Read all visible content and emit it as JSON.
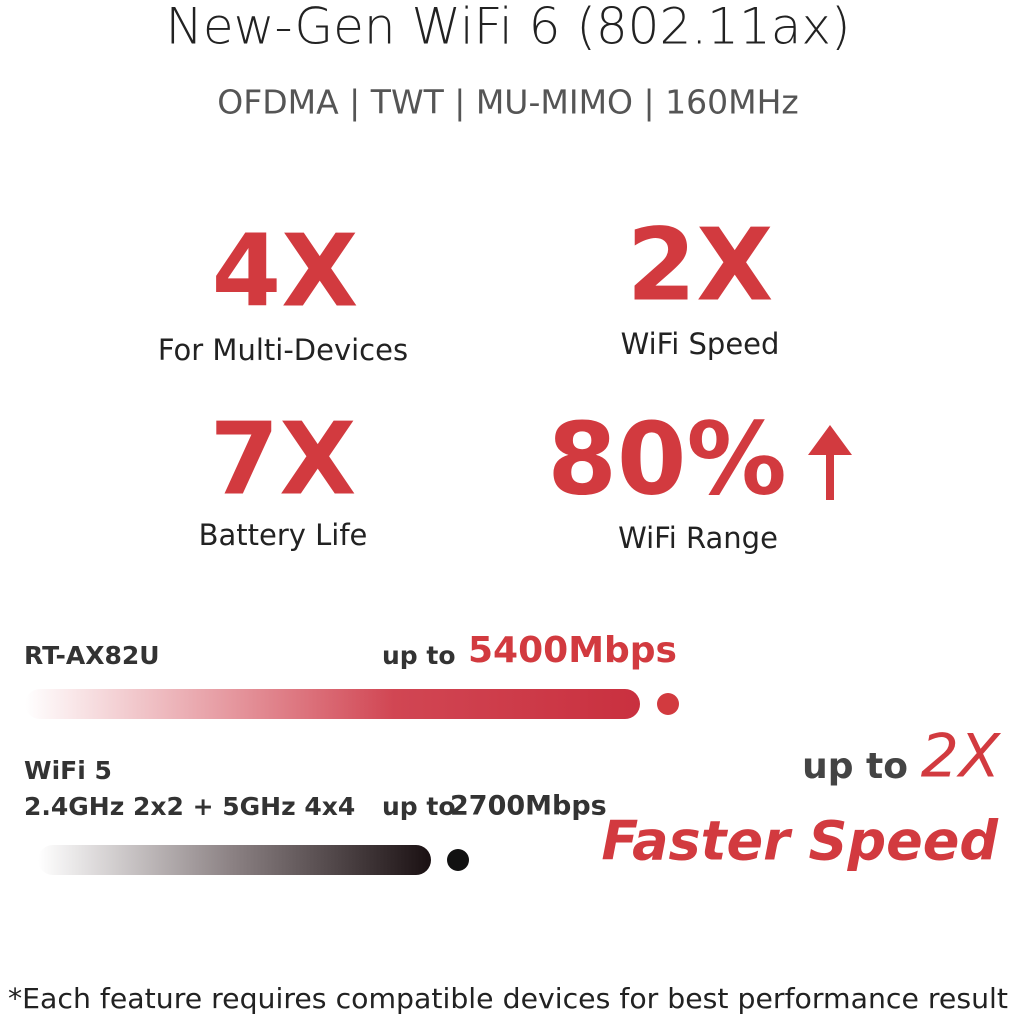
{
  "header": {
    "title": "New-Gen WiFi 6 (802.11ax)",
    "subtitle": "OFDMA | TWT | MU-MIMO | 160MHz"
  },
  "stats": [
    {
      "value": "4X",
      "label": "For Multi-Devices"
    },
    {
      "value": "2X",
      "label": "WiFi Speed"
    },
    {
      "value": "7X",
      "label": "Battery Life"
    },
    {
      "value": "80%",
      "label": "WiFi Range"
    }
  ],
  "comparison": [
    {
      "name": "RT-AX82U",
      "prefix": "up to",
      "speed": "5400Mbps"
    },
    {
      "name": "WiFi 5",
      "detail": "2.4GHz 2x2 + 5GHz 4x4",
      "prefix": "up to",
      "speed": "2700Mbps"
    }
  ],
  "callout": {
    "prefix": "up to",
    "value": "2X",
    "text": "Faster Speed"
  },
  "footnote": "*Each feature requires compatible devices for best performance result"
}
